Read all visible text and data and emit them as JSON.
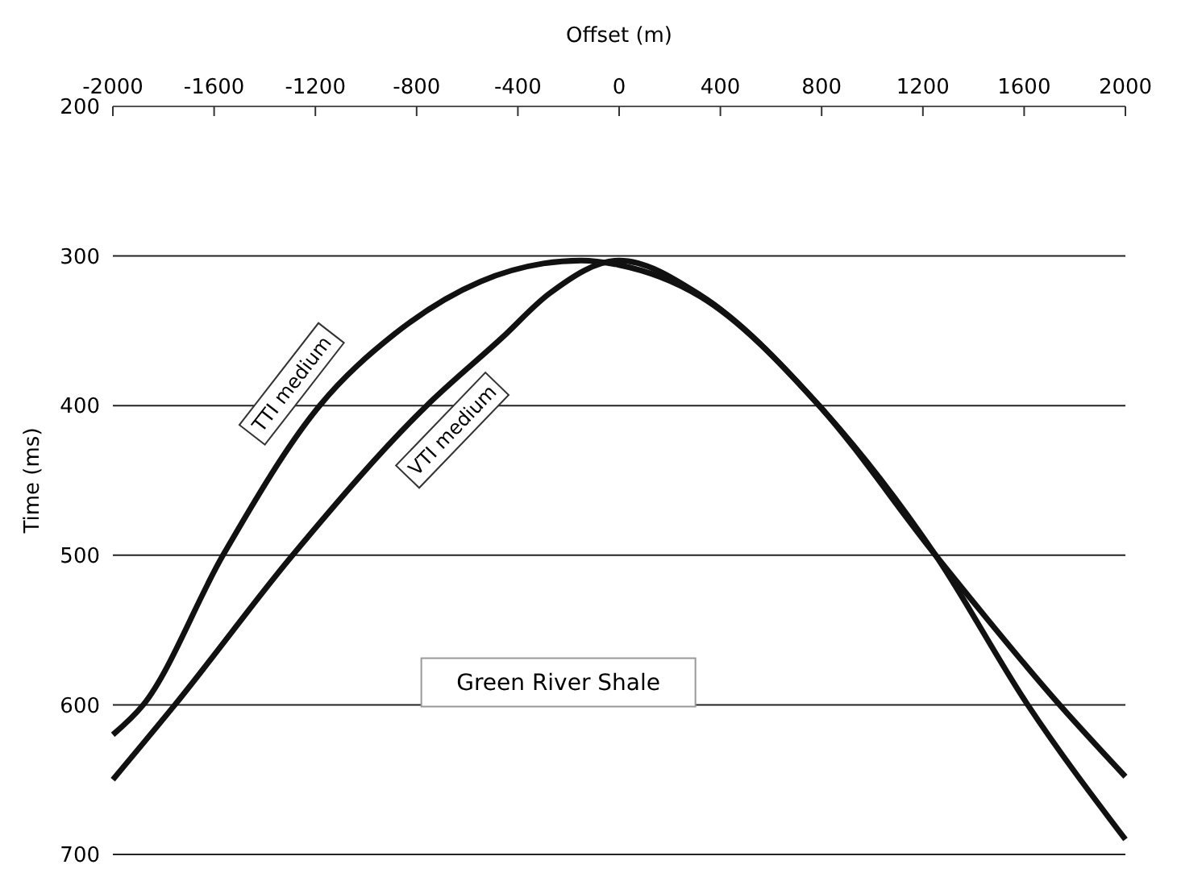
{
  "chart_data": {
    "type": "line",
    "xlabel": "Offset (m)",
    "ylabel": "Time (ms)",
    "xlim": [
      -2000,
      2000
    ],
    "xticks": [
      -2000,
      -1600,
      -1200,
      -800,
      -400,
      0,
      400,
      800,
      1200,
      1600,
      2000
    ],
    "ylim": [
      700,
      200
    ],
    "yticks": [
      200,
      300,
      400,
      500,
      600,
      700
    ],
    "grid": "y",
    "marker": "none",
    "line_style": "solid",
    "series": [
      {
        "name": "TTI medium",
        "color": "#111111",
        "x": [
          -2000,
          -1880,
          -1565,
          -1183,
          -886,
          -547,
          -300,
          -150,
          0,
          320,
          790,
          1250,
          1614,
          2000
        ],
        "values": [
          620,
          600,
          500,
          400,
          352,
          317,
          305,
          303,
          306,
          327,
          400,
          500,
          600,
          690
        ]
      },
      {
        "name": "VTI medium",
        "color": "#111111",
        "x": [
          -2000,
          -1755,
          -1290,
          -760,
          -465,
          -275,
          0,
          320,
          790,
          1250,
          1740,
          2000
        ],
        "values": [
          650,
          600,
          500,
          400,
          355,
          325,
          303,
          326,
          400,
          500,
          600,
          648
        ]
      }
    ],
    "annotations": [
      "Green River Shale"
    ]
  }
}
